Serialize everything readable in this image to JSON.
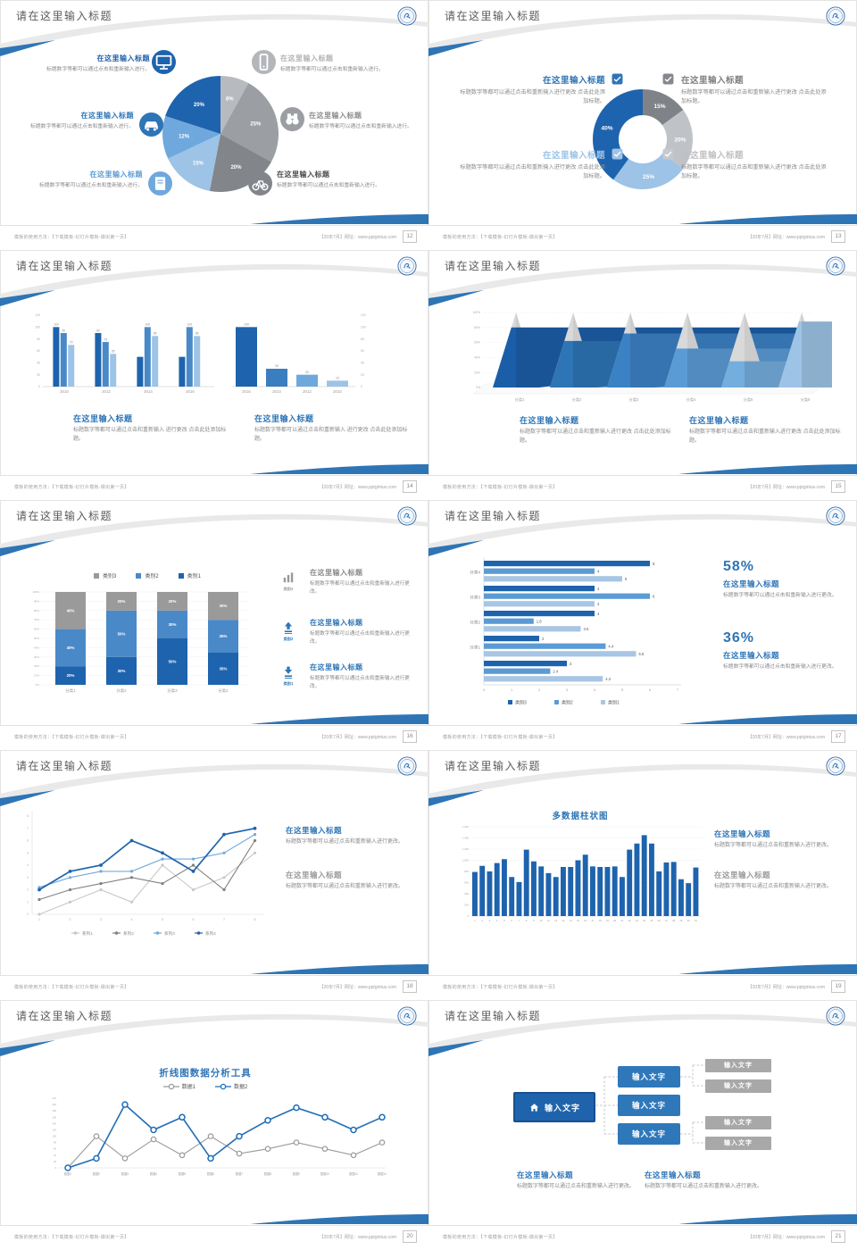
{
  "common": {
    "slide_title": "请在这里输入标题",
    "heading": "在这里输入标题",
    "body_a": "标题数字等都可以通过点击和重新输入进行。",
    "body_b": "标题数字等都可以通过点击和重新输入进行更改 点击此处添加标题。",
    "body_c": "标题数字等都可以通过点击和重新输入进行更改。",
    "body_d": "标题数字等都可以通过点击和重新输入 进行更改 点击此处添加标题。",
    "footer_left": "模板的使用方法：【下载模板-幻灯片模板-做出第一页】",
    "footer_right": "【20年7月】网址：www.pptgintus.com",
    "logo": "school-emblem"
  },
  "colors": {
    "blue_dark": "#1e63ad",
    "blue": "#2e75b6",
    "blue_mid": "#5b9bd5",
    "blue_light": "#9dc3e6",
    "gray_dark": "#7f7f7f",
    "gray_mid": "#a6a6a6",
    "gray_light": "#bfbfbf",
    "title_gray": "#5a5a5a",
    "body_gray": "#8a8a8a"
  },
  "slides": [
    {
      "page": "12",
      "type": "pie_icons",
      "chart_data": {
        "type": "pie",
        "values": [
          8,
          25,
          20,
          15,
          12,
          20
        ],
        "labels": [
          "8%",
          "25%",
          "20%",
          "15%",
          "12%",
          "20%"
        ],
        "colors": [
          "#b7babe",
          "#9b9fa4",
          "#82868b",
          "#9dc3e6",
          "#6fa8dc",
          "#1e63ad"
        ]
      },
      "callouts": [
        {
          "icon": "monitor",
          "icon_bg": "#1e63ad",
          "heading_color": "#1f5fa9"
        },
        {
          "icon": "car",
          "icon_bg": "#2e75b6",
          "heading_color": "#2e75b6"
        },
        {
          "icon": "book",
          "icon_bg": "#6fa8dc",
          "heading_color": "#5b9bd5"
        },
        {
          "icon": "smartphone",
          "icon_bg": "#b3b6ba",
          "heading_color": "#b3b3b3"
        },
        {
          "icon": "binoculars",
          "icon_bg": "#9b9fa4",
          "heading_color": "#8b8b8b"
        },
        {
          "icon": "bicycle",
          "icon_bg": "#82868b",
          "heading_color": "#4a4a4a"
        }
      ]
    },
    {
      "page": "13",
      "type": "donut_checks",
      "chart_data": {
        "type": "pie",
        "donut": true,
        "values": [
          15,
          20,
          25,
          40
        ],
        "labels": [
          "15%",
          "20%",
          "25%",
          "40%"
        ],
        "colors": [
          "#7f8388",
          "#bfc3c7",
          "#9dc3e6",
          "#1e63ad"
        ]
      },
      "callouts": [
        {
          "check_color": "#2e75b6",
          "heading_color": "#2e75b6"
        },
        {
          "check_color": "#85898e",
          "heading_color": "#7f7f7f"
        },
        {
          "check_color": "#9dc3e6",
          "heading_color": "#9dc3e6"
        },
        {
          "check_color": "#c6c9cd",
          "heading_color": "#c0c0c0"
        }
      ]
    },
    {
      "page": "14",
      "type": "two_bars",
      "chart_data": [
        {
          "type": "bar",
          "categories": [
            "2010",
            "2012",
            "2014",
            "2016"
          ],
          "series": [
            {
              "name": "series1",
              "color": "#1e63ad",
              "values": [
                100,
                90,
                50,
                50
              ]
            },
            {
              "name": "series2",
              "color": "#4a89c8",
              "values": [
                90,
                75,
                100,
                100
              ]
            },
            {
              "name": "series3",
              "color": "#9dc3e6",
              "values": [
                70,
                55,
                85,
                85
              ]
            }
          ],
          "bar_labels": [
            [
              100,
              90,
              70
            ],
            [
              90,
              75,
              55
            ],
            [
              null,
              100,
              85
            ],
            [
              null,
              100,
              85
            ]
          ],
          "ylim": [
            0,
            120
          ],
          "ytick_step": 20
        },
        {
          "type": "bar",
          "categories": [
            "2016",
            "2014",
            "2012",
            "2010"
          ],
          "values": [
            100,
            30,
            20,
            10
          ],
          "colors": [
            "#1e63ad",
            "#3b7ec0",
            "#6fa8dc",
            "#9dc3e6"
          ],
          "ylim": [
            0,
            120
          ],
          "ytick_step": 20
        }
      ],
      "blocks": [
        {
          "heading_color": "#2e75b6"
        },
        {
          "heading_color": "#2e75b6"
        }
      ]
    },
    {
      "page": "15",
      "type": "pyramid",
      "chart_data": {
        "type": "bar",
        "shape": "pyramid",
        "categories": [
          "分类1",
          "分类2",
          "分类3",
          "分类4",
          "分类5",
          "分类6"
        ],
        "values": [
          80,
          62,
          72,
          52,
          35,
          88
        ],
        "colors": [
          "#1b5ea8",
          "#2e75b6",
          "#3b82c4",
          "#5b9bd5",
          "#74aede",
          "#9dc3e6"
        ],
        "top_color": "#d9d9d9",
        "ylim": [
          0,
          100
        ],
        "yticks": [
          "0%",
          "20%",
          "40%",
          "60%",
          "80%",
          "100%"
        ]
      },
      "blocks": [
        {
          "heading_color": "#2e75b6"
        },
        {
          "heading_color": "#2e75b6"
        }
      ]
    },
    {
      "page": "16",
      "type": "stacked",
      "chart_data": {
        "type": "bar",
        "stacked": true,
        "categories": [
          "分类1",
          "分类2",
          "分类3",
          "分类4"
        ],
        "series": [
          {
            "name": "类别1",
            "color": "#1e63ad",
            "values": [
              20,
              30,
              50,
              35
            ]
          },
          {
            "name": "类别2",
            "color": "#4a89c8",
            "values": [
              40,
              50,
              30,
              35
            ]
          },
          {
            "name": "类别3",
            "color": "#9a9a9a",
            "values": [
              40,
              20,
              20,
              30
            ]
          }
        ],
        "legend_order": [
          "类别3",
          "类别2",
          "类别1"
        ],
        "legend_colors": [
          "#9a9a9a",
          "#4a89c8",
          "#1e63ad"
        ],
        "ylim": [
          0,
          100
        ],
        "ytick_step": 10
      },
      "items": [
        {
          "icon": "bar-chart",
          "icon_color": "#9a9a9a",
          "label": "类别3",
          "heading_color": "#8a8a8a"
        },
        {
          "icon": "arrow-up",
          "icon_color": "#2e75b6",
          "label": "类别2",
          "heading_color": "#2e75b6"
        },
        {
          "icon": "arrow-down",
          "icon_color": "#2e75b6",
          "label": "类别1",
          "heading_color": "#2e75b6"
        }
      ]
    },
    {
      "page": "17",
      "type": "hbar",
      "chart_data": {
        "type": "bar",
        "orientation": "horizontal",
        "groups": [
          {
            "label": "分类4",
            "values": [
              6,
              4,
              5
            ]
          },
          {
            "label": "分类3",
            "values": [
              4,
              6,
              4
            ]
          },
          {
            "label": "分类2",
            "values": [
              4,
              1.8,
              3.5
            ]
          },
          {
            "label": "分类1",
            "values": [
              2,
              4.4,
              5.5
            ]
          },
          {
            "label": "",
            "values": [
              3,
              2.4,
              4.3
            ]
          }
        ],
        "series_names": [
          "类别3",
          "类别2",
          "类别1"
        ],
        "series_colors": [
          "#1e63ad",
          "#5b9bd5",
          "#a8c6e4"
        ],
        "xlim": [
          0,
          7
        ],
        "xticks": [
          0,
          1,
          2,
          3,
          4,
          5,
          6,
          7
        ]
      },
      "stats": [
        {
          "value": "58%"
        },
        {
          "value": "36%"
        }
      ]
    },
    {
      "page": "18",
      "type": "multiline",
      "chart_data": {
        "type": "line",
        "x": [
          1,
          2,
          3,
          4,
          5,
          6,
          7,
          8
        ],
        "ylim": [
          0,
          8
        ],
        "series": [
          {
            "name": "系列1",
            "color": "#c8c8c8",
            "values": [
              0,
              1,
              2,
              1,
              4,
              2,
              3,
              5
            ]
          },
          {
            "name": "系列2",
            "color": "#808080",
            "values": [
              1.2,
              2,
              2.5,
              3,
              2.5,
              4,
              2,
              6
            ]
          },
          {
            "name": "系列3",
            "color": "#74a9d8",
            "values": [
              2.2,
              3,
              3.5,
              3.5,
              4.5,
              4.5,
              5,
              6.5
            ]
          },
          {
            "name": "系列4",
            "color": "#1e63ad",
            "values": [
              2,
              3.5,
              4,
              6,
              5,
              3.5,
              6.5,
              7
            ]
          }
        ]
      },
      "blocks": [
        {
          "heading_color": "#2e75b6"
        },
        {
          "heading_color": "#9a9a9a"
        }
      ]
    },
    {
      "page": "19",
      "type": "columns",
      "chart_data": {
        "type": "bar",
        "title": "多数据柱状图",
        "color": "#1e63ad",
        "x": [
          1,
          2,
          3,
          4,
          5,
          6,
          7,
          8,
          9,
          10,
          11,
          12,
          13,
          14,
          15,
          16,
          17,
          18,
          19,
          20,
          21,
          22,
          23,
          24,
          25,
          26,
          27,
          28,
          29,
          30,
          31
        ],
        "values": [
          790,
          900,
          800,
          950,
          1020,
          700,
          610,
          1190,
          980,
          890,
          770,
          700,
          880,
          880,
          1000,
          1100,
          890,
          880,
          880,
          890,
          700,
          1190,
          1300,
          1450,
          1300,
          800,
          960,
          970,
          660,
          590,
          870
        ],
        "ylim": [
          0,
          1600
        ],
        "ytick_step": 200
      },
      "blocks": [
        {
          "heading_color": "#2e75b6"
        },
        {
          "heading_color": "#9a9a9a"
        }
      ]
    },
    {
      "page": "20",
      "type": "lines2",
      "chart_data": {
        "type": "line",
        "title": "折线图数据分析工具",
        "categories": [
          "数据1",
          "数据2",
          "数据3",
          "数据4",
          "数据5",
          "数据6",
          "数据7",
          "数据8",
          "数据9",
          "数据10",
          "数据11",
          "数据12"
        ],
        "series": [
          {
            "name": "数据1",
            "color": "#9a9a9a",
            "values": [
              0,
              100,
              30,
              90,
              40,
              100,
              45,
              60,
              80,
              60,
              40,
              80
            ]
          },
          {
            "name": "数据2",
            "color": "#1f6cb8",
            "values": [
              0,
              30,
              200,
              120,
              160,
              30,
              100,
              150,
              190,
              160,
              120,
              160
            ]
          }
        ],
        "ylim": [
          0,
          220
        ],
        "ytick_step": 20
      }
    },
    {
      "page": "21",
      "type": "org",
      "diagram": {
        "root_label": "输入文字",
        "root_icon": "home",
        "root_color": "#1f63ac",
        "root_border": "#17508d",
        "mid_labels": [
          "输入文字",
          "输入文字",
          "输入文字"
        ],
        "mid_color": "#2e78ba",
        "leaf_labels": [
          "输入文字",
          "输入文字",
          "输入文字",
          "输入文字"
        ],
        "leaf_color": "#a8a8a8"
      },
      "blocks": [
        {
          "heading_color": "#2e75b6"
        },
        {
          "heading_color": "#2e75b6"
        }
      ]
    }
  ]
}
